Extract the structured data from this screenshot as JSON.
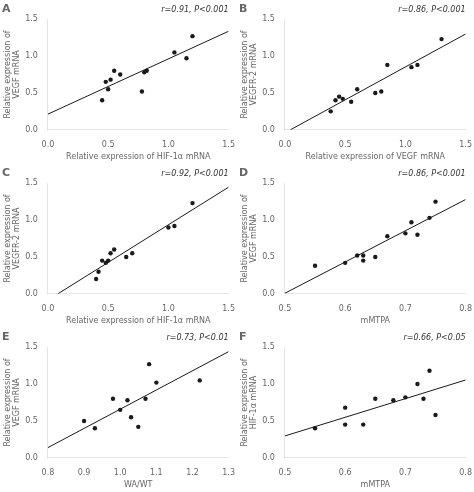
{
  "chart_data": [
    {
      "type": "scatter",
      "title": "A",
      "annotations": [
        "r=0.91, P<0.001"
      ],
      "xlabel": "Relative expression of HIF-1α mRNA",
      "ylabel": "Relative expression of\nVEGF mRNA",
      "xlim": [
        0.0,
        1.5
      ],
      "ylim": [
        0.0,
        1.5
      ],
      "xticks": [
        {
          "value": 0.0,
          "label": "0.0"
        },
        0.5,
        {
          "value": 1.0,
          "label": "1.0"
        },
        1.5
      ],
      "yticks": [
        {
          "value": 0.0,
          "label": "0.0"
        },
        0.5,
        {
          "value": 1.0,
          "label": "1.0"
        },
        1.5
      ],
      "grid": false,
      "series": [
        {
          "type": "scatter",
          "color": "#1a1a1a",
          "x": [
            0.45,
            0.48,
            0.5,
            0.52,
            0.55,
            0.6,
            0.78,
            0.8,
            0.82,
            1.05,
            1.15,
            1.2
          ],
          "values": [
            0.4,
            0.65,
            0.55,
            0.68,
            0.8,
            0.75,
            0.52,
            0.78,
            0.8,
            1.05,
            0.97,
            1.27
          ]
        },
        {
          "type": "line",
          "color": "#1a1a1a",
          "x": [
            0.0,
            1.5
          ],
          "values": [
            0.2126,
            1.3366
          ]
        }
      ]
    },
    {
      "type": "scatter",
      "title": "B",
      "annotations": [
        "r=0.86, P<0.001"
      ],
      "xlabel": "Relative expression of VEGF mRNA",
      "ylabel": "Relative expression of\nVEGFR-2 mRNA",
      "xlim": [
        0.0,
        1.5
      ],
      "ylim": [
        0.0,
        1.5
      ],
      "xticks": [
        {
          "value": 0.0,
          "label": "0.0"
        },
        0.5,
        {
          "value": 1.0,
          "label": "1.0"
        },
        1.5
      ],
      "yticks": [
        {
          "value": 0.0,
          "label": "0.0"
        },
        0.5,
        {
          "value": 1.0,
          "label": "1.0"
        },
        1.5
      ],
      "grid": false,
      "series": [
        {
          "type": "scatter",
          "color": "#1a1a1a",
          "x": [
            0.38,
            0.42,
            0.45,
            0.48,
            0.55,
            0.6,
            0.75,
            0.8,
            0.85,
            1.05,
            1.1,
            1.3
          ],
          "values": [
            0.25,
            0.4,
            0.45,
            0.42,
            0.38,
            0.55,
            0.5,
            0.52,
            0.88,
            0.85,
            0.88,
            1.23
          ]
        },
        {
          "type": "line",
          "color": "#1a1a1a",
          "x": [
            0.0455,
            1.5
          ],
          "values": [
            0.0,
            1.2991
          ]
        }
      ]
    },
    {
      "type": "scatter",
      "title": "C",
      "annotations": [
        "r=0.92, P<0.001"
      ],
      "xlabel": "Relative expression of HIF-1α mRNA",
      "ylabel": "Relative expression of\nVEGFR-2 mRNA",
      "xlim": [
        0.0,
        1.5
      ],
      "ylim": [
        0.0,
        1.5
      ],
      "xticks": [
        {
          "value": 0.0,
          "label": "0.0"
        },
        0.5,
        {
          "value": 1.0,
          "label": "1.0"
        },
        1.5
      ],
      "yticks": [
        {
          "value": 0.0,
          "label": "0.0"
        },
        0.5,
        {
          "value": 1.0,
          "label": "1.0"
        },
        1.5
      ],
      "grid": false,
      "series": [
        {
          "type": "scatter",
          "color": "#1a1a1a",
          "x": [
            0.4,
            0.42,
            0.45,
            0.48,
            0.5,
            0.52,
            0.55,
            0.65,
            0.7,
            1.0,
            1.05,
            1.2
          ],
          "values": [
            0.2,
            0.3,
            0.45,
            0.42,
            0.45,
            0.55,
            0.6,
            0.5,
            0.55,
            0.9,
            0.92,
            1.23
          ]
        },
        {
          "type": "line",
          "color": "#1a1a1a",
          "x": [
            0.0827,
            1.5
          ],
          "values": [
            0.0,
            1.4465
          ]
        }
      ]
    },
    {
      "type": "scatter",
      "title": "D",
      "annotations": [
        "r=0.86, P<0.001"
      ],
      "xlabel": "mMTPA",
      "ylabel": "Relative expression of\nVEGF mRNA",
      "xlim": [
        0.5,
        0.8
      ],
      "ylim": [
        0.0,
        1.5
      ],
      "xticks": [
        0.5,
        0.6,
        0.7,
        0.8
      ],
      "yticks": [
        {
          "value": 0.0,
          "label": "0.0"
        },
        0.5,
        {
          "value": 1.0,
          "label": "1.0"
        },
        1.5
      ],
      "grid": false,
      "series": [
        {
          "type": "scatter",
          "color": "#1a1a1a",
          "x": [
            0.55,
            0.6,
            0.62,
            0.63,
            0.63,
            0.65,
            0.67,
            0.7,
            0.71,
            0.72,
            0.74,
            0.75
          ],
          "values": [
            0.38,
            0.42,
            0.52,
            0.52,
            0.45,
            0.5,
            0.78,
            0.82,
            0.97,
            0.8,
            1.03,
            1.25
          ]
        },
        {
          "type": "line",
          "color": "#1a1a1a",
          "x": [
            0.5,
            0.8
          ],
          "values": [
            0.0078,
            1.2788
          ]
        }
      ]
    },
    {
      "type": "scatter",
      "title": "E",
      "annotations": [
        "r=0.73, P<0.01"
      ],
      "xlabel": "WA/WT",
      "ylabel": "Relative expression of\nVEGF mRNA",
      "xlim": [
        0.8,
        1.3
      ],
      "ylim": [
        0.0,
        1.5
      ],
      "xticks": [
        0.8,
        0.9,
        {
          "value": 1.0,
          "label": "1.0"
        },
        1.1,
        1.2,
        1.3
      ],
      "yticks": [
        {
          "value": 0.0,
          "label": "0.0"
        },
        0.5,
        {
          "value": 1.0,
          "label": "1.0"
        },
        1.5
      ],
      "grid": false,
      "series": [
        {
          "type": "scatter",
          "color": "#1a1a1a",
          "x": [
            0.9,
            0.93,
            0.98,
            1.0,
            1.02,
            1.03,
            1.05,
            1.07,
            1.08,
            1.1,
            1.22
          ],
          "values": [
            0.5,
            0.4,
            0.8,
            0.65,
            0.78,
            0.55,
            0.42,
            0.8,
            1.27,
            1.02,
            1.05
          ]
        },
        {
          "type": "line",
          "color": "#1a1a1a",
          "x": [
            0.8,
            1.3
          ],
          "values": [
            0.1384,
            1.4403
          ]
        }
      ]
    },
    {
      "type": "scatter",
      "title": "F",
      "annotations": [
        "r=0.66, P<0.05"
      ],
      "xlabel": "mMTPA",
      "ylabel": "Relative expression of\nHIF-1α mRNA",
      "xlim": [
        0.5,
        0.8
      ],
      "ylim": [
        0.0,
        1.5
      ],
      "xticks": [
        0.5,
        0.6,
        0.7,
        0.8
      ],
      "yticks": [
        {
          "value": 0.0,
          "label": "0.0"
        },
        0.5,
        {
          "value": 1.0,
          "label": "1.0"
        },
        1.5
      ],
      "grid": false,
      "series": [
        {
          "type": "scatter",
          "color": "#1a1a1a",
          "x": [
            0.55,
            0.6,
            0.6,
            0.63,
            0.65,
            0.68,
            0.7,
            0.72,
            0.73,
            0.74,
            0.75
          ],
          "values": [
            0.4,
            0.45,
            0.68,
            0.45,
            0.8,
            0.78,
            0.82,
            1.0,
            0.8,
            1.18,
            0.58
          ]
        },
        {
          "type": "line",
          "color": "#1a1a1a",
          "x": [
            0.5,
            0.8
          ],
          "values": [
            0.2964,
            1.0553
          ]
        }
      ]
    }
  ]
}
